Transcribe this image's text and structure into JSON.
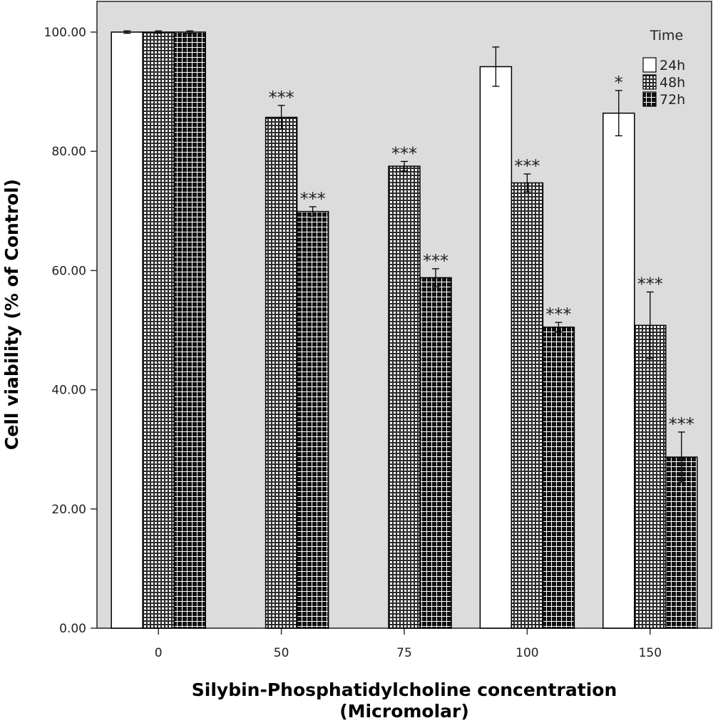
{
  "chart_data": {
    "type": "bar",
    "xlabel_line1": "Silybin-Phosphatidylcholine concentration",
    "xlabel_line2": "(Micromolar)",
    "ylabel": "Cell viability (% of Control)",
    "ylim": [
      0,
      105
    ],
    "yticks": [
      0,
      20,
      40,
      60,
      80,
      100
    ],
    "ytick_labels": [
      "0.00",
      "20.00",
      "40.00",
      "60.00",
      "80.00",
      "100.00"
    ],
    "categories": [
      "0",
      "50",
      "75",
      "100",
      "150"
    ],
    "legend_title": "Time",
    "legend_position": "top-right",
    "grid": false,
    "series": [
      {
        "name": "24h",
        "pattern": "white",
        "values": [
          100,
          null,
          null,
          94.2,
          86.4
        ],
        "errors": [
          0.2,
          null,
          null,
          3.3,
          3.8
        ],
        "sig": [
          "",
          "",
          "",
          "",
          "*"
        ]
      },
      {
        "name": "48h",
        "pattern": "fine-grid",
        "values": [
          100,
          85.7,
          77.5,
          74.7,
          50.8
        ],
        "errors": [
          0.2,
          2.0,
          0.8,
          1.5,
          5.6
        ],
        "sig": [
          "",
          "***",
          "***",
          "***",
          "***"
        ]
      },
      {
        "name": "72h",
        "pattern": "coarse-grid",
        "values": [
          100,
          69.9,
          58.8,
          50.5,
          28.7
        ],
        "errors": [
          0.2,
          0.8,
          1.5,
          0.8,
          4.2
        ],
        "sig": [
          "",
          "***",
          "***",
          "***",
          "***"
        ]
      }
    ]
  }
}
